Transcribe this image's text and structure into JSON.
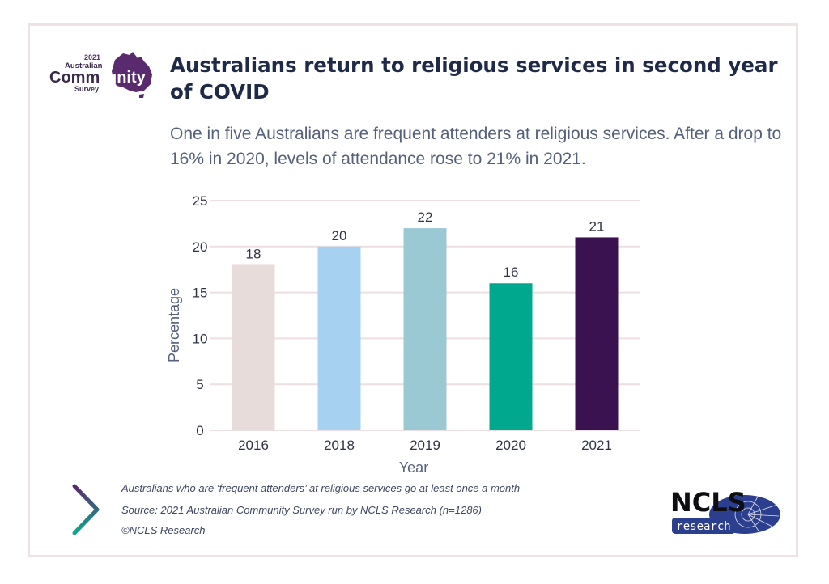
{
  "logo_left": {
    "year": "2021",
    "line1": "Australian",
    "word_a": "Comm",
    "word_b": "unity",
    "line3": "Survey"
  },
  "header": {
    "title": "Australians return to religious services in second year of COVID",
    "subtitle": "One in five Australians are frequent attenders at religious services. After a drop to 16% in 2020, levels of attendance rose to 21% in 2021."
  },
  "chart_data": {
    "type": "bar",
    "categories": [
      "2016",
      "2018",
      "2019",
      "2020",
      "2021"
    ],
    "values": [
      18,
      20,
      22,
      16,
      21
    ],
    "data_labels": [
      "18",
      "20",
      "22",
      "16",
      "21"
    ],
    "bar_colors": [
      "#e7dcda",
      "#a7d1f1",
      "#9ac9d3",
      "#00a98e",
      "#3a1250"
    ],
    "xlabel": "Year",
    "ylabel": "Percentage",
    "ylim": [
      0,
      25
    ],
    "yticks": [
      0,
      5,
      10,
      15,
      20,
      25
    ],
    "ytick_labels": [
      "0",
      "5",
      "10",
      "15",
      "20",
      "25"
    ],
    "grid": true,
    "legend": "none"
  },
  "footer": {
    "note": "Australians who are ‘frequent attenders’ at religious services go at least once a month",
    "source": "Source:  2021 Australian Community Survey run by NCLS Research (n=1286)",
    "copyright": "©NCLS Research"
  },
  "logo_right": {
    "top": "NCLS",
    "bottom": "research"
  },
  "colors": {
    "title": "#1e2a47",
    "text": "#55607a",
    "grid": "#ecdfe1",
    "logo_purple": "#5a2a6e",
    "ncls_blue": "#2c3f8f"
  }
}
